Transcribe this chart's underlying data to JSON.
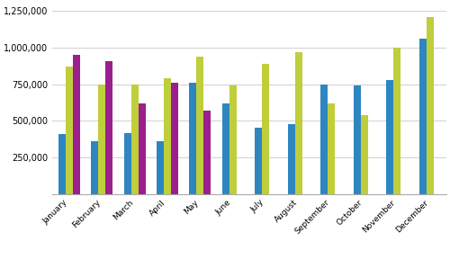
{
  "months": [
    "January",
    "February",
    "March",
    "April",
    "May",
    "June",
    "July",
    "August",
    "September",
    "October",
    "November",
    "December"
  ],
  "series": {
    "2018": [
      410000,
      360000,
      415000,
      360000,
      760000,
      620000,
      455000,
      480000,
      750000,
      740000,
      780000,
      1060000
    ],
    "2019": [
      870000,
      750000,
      750000,
      790000,
      940000,
      740000,
      890000,
      970000,
      620000,
      540000,
      1000000,
      1210000
    ],
    "2020": [
      950000,
      910000,
      620000,
      760000,
      570000,
      null,
      null,
      null,
      null,
      null,
      null,
      null
    ]
  },
  "colors": {
    "2018": "#2E86C1",
    "2019": "#BFCE3B",
    "2020": "#9B1F8C"
  },
  "ylim": [
    0,
    1300000
  ],
  "yticks": [
    250000,
    500000,
    750000,
    1000000,
    1250000
  ],
  "ytick_labels": [
    "250,000",
    "500,000",
    "750,000",
    "1,000,000",
    "1,250,000"
  ],
  "background_color": "#ffffff",
  "grid_color": "#d0d0d0"
}
